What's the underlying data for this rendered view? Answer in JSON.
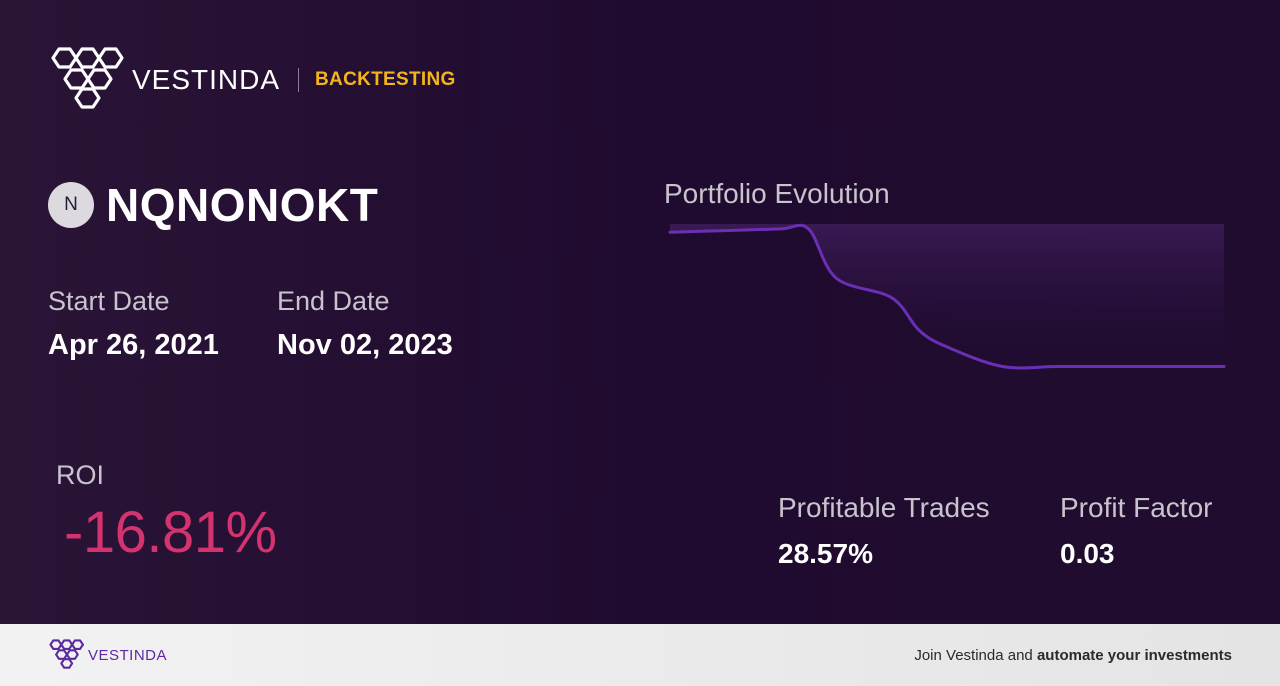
{
  "brand": {
    "name": "VESTINDA",
    "tag": "BACKTESTING",
    "logo_icon": "vestinda-hex-logo-icon"
  },
  "ticker": {
    "badge": "N",
    "name": "NQNONOKT"
  },
  "dates": {
    "start_label": "Start Date",
    "start_value": "Apr 26, 2021",
    "end_label": "End Date",
    "end_value": "Nov 02, 2023"
  },
  "roi": {
    "label": "ROI",
    "value": "-16.81%"
  },
  "stats": {
    "profitable_label": "Profitable Trades",
    "profitable_value": "28.57%",
    "factor_label": "Profit Factor",
    "factor_value": "0.03"
  },
  "chart": {
    "title": "Portfolio Evolution"
  },
  "chart_data": {
    "type": "area",
    "title": "Portfolio Evolution",
    "xlabel": "",
    "ylabel": "",
    "grid": false,
    "x": [
      0,
      0.1,
      0.2,
      0.25,
      0.3,
      0.4,
      0.45,
      0.5,
      0.6,
      0.7,
      0.8,
      0.9,
      1.0
    ],
    "y": [
      1.0,
      1.01,
      1.02,
      1.02,
      0.72,
      0.6,
      0.4,
      0.3,
      0.18,
      0.18,
      0.18,
      0.18,
      0.18
    ],
    "ylim": [
      0,
      1.05
    ],
    "colors": {
      "line": "#6a2fb3",
      "fill_top": "#3a1a55"
    }
  },
  "footer": {
    "brand_name": "VESTINDA",
    "cta_prefix": "Join Vestinda and ",
    "cta_bold": "automate your investments"
  }
}
